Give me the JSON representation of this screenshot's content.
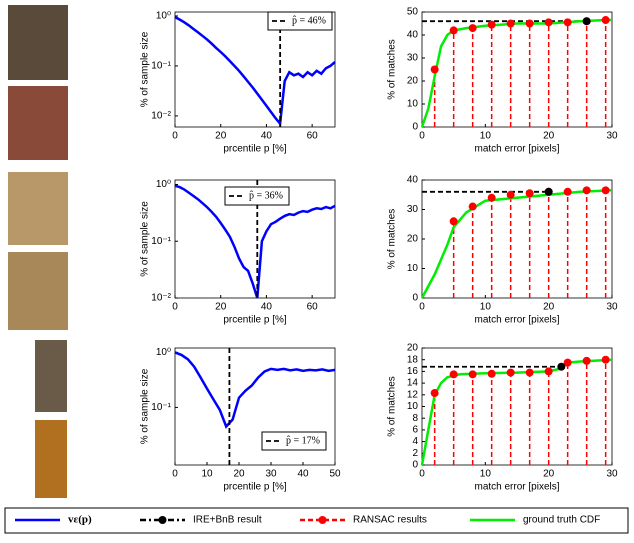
{
  "chart_data": [
    {
      "type": "log-line",
      "ylabel": "% of sample size",
      "xlabel": "prcentile p [%]",
      "annotation": "p̂ = 46%",
      "marker_x": 46,
      "xlim": [
        0,
        70
      ],
      "xticks": [
        0,
        20,
        40,
        60
      ],
      "ylim": [
        0.006,
        1.2
      ],
      "yticks": [
        {
          "value": 1,
          "label": "10⁰"
        },
        {
          "value": 0.1,
          "label": "10⁻¹"
        },
        {
          "value": 0.01,
          "label": "10⁻²"
        }
      ],
      "log_scale": true,
      "x": [
        0,
        2,
        4,
        6,
        8,
        10,
        12,
        14,
        16,
        18,
        20,
        22,
        24,
        26,
        28,
        30,
        32,
        34,
        36,
        38,
        40,
        42,
        44,
        46,
        48,
        50,
        52,
        54,
        56,
        58,
        60,
        62,
        64,
        66,
        68,
        70
      ],
      "values": [
        0.95,
        0.85,
        0.75,
        0.65,
        0.55,
        0.47,
        0.4,
        0.34,
        0.28,
        0.23,
        0.19,
        0.155,
        0.125,
        0.1,
        0.08,
        0.062,
        0.048,
        0.037,
        0.028,
        0.021,
        0.016,
        0.012,
        0.009,
        0.007,
        0.05,
        0.075,
        0.065,
        0.07,
        0.06,
        0.075,
        0.065,
        0.08,
        0.07,
        0.09,
        0.1,
        0.12
      ]
    },
    {
      "type": "cdf",
      "ylabel": "% of matches",
      "xlabel": "match error [pixels]",
      "xlim": [
        0,
        30
      ],
      "xticks": [
        0,
        10,
        20,
        30
      ],
      "ylim": [
        0,
        50
      ],
      "yticks": [
        0,
        10,
        20,
        30,
        40,
        50
      ],
      "x": [
        0,
        1,
        2,
        3,
        4,
        5,
        7,
        10,
        15,
        20,
        25,
        29,
        30
      ],
      "values": [
        0,
        8,
        22,
        35,
        40,
        42,
        43,
        44,
        45,
        45,
        46,
        46.5,
        46.5
      ],
      "ransac": {
        "x": [
          2,
          5,
          8,
          11,
          14,
          17,
          20,
          23,
          26,
          29
        ],
        "values": [
          25,
          42,
          43,
          44.5,
          45,
          45,
          45.5,
          45.5,
          46,
          46.5
        ]
      },
      "ire": {
        "x": 26,
        "value": 46
      }
    },
    {
      "type": "log-line",
      "ylabel": "% of sample size",
      "xlabel": "prcentile p [%]",
      "annotation": "p̂ = 36%",
      "marker_x": 36,
      "xlim": [
        0,
        70
      ],
      "xticks": [
        0,
        20,
        40,
        60
      ],
      "ylim": [
        0.01,
        1.2
      ],
      "yticks": [
        {
          "value": 1,
          "label": "10⁰"
        },
        {
          "value": 0.1,
          "label": "10⁻¹"
        },
        {
          "value": 0.01,
          "label": "10⁻²"
        }
      ],
      "log_scale": true,
      "x": [
        0,
        2,
        4,
        6,
        8,
        10,
        12,
        14,
        16,
        18,
        20,
        22,
        24,
        26,
        28,
        30,
        32,
        34,
        36,
        38,
        40,
        42,
        44,
        46,
        48,
        50,
        52,
        54,
        56,
        58,
        60,
        62,
        64,
        66,
        68,
        70
      ],
      "values": [
        0.95,
        0.9,
        0.82,
        0.72,
        0.63,
        0.55,
        0.47,
        0.4,
        0.33,
        0.27,
        0.21,
        0.16,
        0.12,
        0.08,
        0.05,
        0.035,
        0.03,
        0.018,
        0.01,
        0.1,
        0.15,
        0.2,
        0.22,
        0.25,
        0.28,
        0.3,
        0.29,
        0.32,
        0.34,
        0.33,
        0.36,
        0.38,
        0.37,
        0.4,
        0.38,
        0.42
      ]
    },
    {
      "type": "cdf",
      "ylabel": "% of matches",
      "xlabel": "match error [pixels]",
      "xlim": [
        0,
        30
      ],
      "xticks": [
        0,
        10,
        20,
        30
      ],
      "ylim": [
        0,
        40
      ],
      "yticks": [
        0,
        10,
        20,
        30,
        40
      ],
      "x": [
        0,
        2,
        4,
        5,
        7,
        10,
        15,
        20,
        25,
        30
      ],
      "values": [
        0,
        8,
        18,
        24,
        29,
        33,
        34,
        35,
        36,
        36.5
      ],
      "ransac": {
        "x": [
          5,
          8,
          11,
          14,
          17,
          20,
          23,
          26,
          29
        ],
        "values": [
          26,
          31,
          34,
          35,
          35.5,
          36,
          36,
          36.5,
          36.5
        ]
      },
      "ire": {
        "x": 20,
        "value": 36
      }
    },
    {
      "type": "log-line",
      "ylabel": "% of sample size",
      "xlabel": "prcentile p [%]",
      "annotation": "p̂ = 17%",
      "marker_x": 17,
      "xlim": [
        0,
        50
      ],
      "xticks": [
        0,
        10,
        20,
        30,
        40,
        50
      ],
      "ylim": [
        0.009,
        1.2
      ],
      "yticks": [
        {
          "value": 1,
          "label": "10⁰"
        },
        {
          "value": 0.1,
          "label": "10⁻¹"
        }
      ],
      "log_scale": true,
      "x": [
        0,
        2,
        4,
        6,
        8,
        10,
        12,
        14,
        16,
        18,
        20,
        22,
        24,
        26,
        28,
        30,
        32,
        34,
        36,
        38,
        40,
        42,
        44,
        46,
        48,
        50
      ],
      "values": [
        1.0,
        0.9,
        0.75,
        0.55,
        0.35,
        0.22,
        0.14,
        0.09,
        0.045,
        0.06,
        0.15,
        0.2,
        0.25,
        0.35,
        0.45,
        0.5,
        0.48,
        0.5,
        0.47,
        0.49,
        0.46,
        0.48,
        0.47,
        0.49,
        0.46,
        0.48
      ]
    },
    {
      "type": "cdf",
      "ylabel": "% of matches",
      "xlabel": "match error [pixels]",
      "xlim": [
        0,
        30
      ],
      "xticks": [
        0,
        10,
        20,
        30
      ],
      "ylim": [
        0,
        20
      ],
      "yticks": [
        0,
        2,
        4,
        6,
        8,
        10,
        12,
        14,
        16,
        18,
        20
      ],
      "x": [
        0,
        1,
        2,
        3,
        4,
        6,
        10,
        15,
        20,
        22,
        23,
        25,
        30
      ],
      "values": [
        0,
        6,
        12,
        14,
        15,
        15.5,
        15.7,
        15.8,
        16,
        16.5,
        17.5,
        17.7,
        18
      ],
      "ransac": {
        "x": [
          2,
          5,
          8,
          11,
          14,
          17,
          20,
          23,
          26,
          29
        ],
        "values": [
          12.3,
          15.5,
          15.5,
          15.6,
          15.8,
          15.8,
          16,
          17.5,
          17.8,
          18
        ]
      },
      "ire": {
        "x": 22,
        "value": 16.8
      }
    }
  ],
  "legend": [
    {
      "label": "vε(p)",
      "color": "#0000ff"
    },
    {
      "label": "IRE+BnB result",
      "color": "#000000"
    },
    {
      "label": "RANSAC results",
      "color": "#ff0000"
    },
    {
      "label": "ground truth CDF",
      "color": "#00ee00"
    }
  ]
}
